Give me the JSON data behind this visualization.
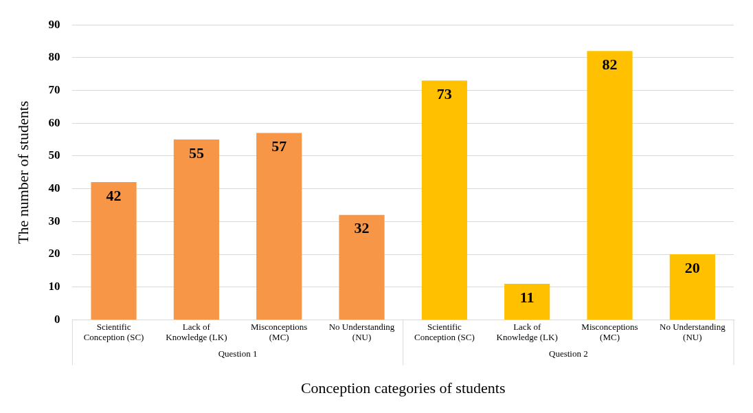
{
  "chart_data": {
    "type": "bar",
    "xlabel": "Conception categories of students",
    "ylabel": "The number of students",
    "categories": [
      "Scientific Conception (SC)",
      "Lack of Knowledge (LK)",
      "Misconceptions (MC)",
      "No Understanding (NU)",
      "Scientific Conception (SC)",
      "Lack of Knowledge (LK)",
      "Misconceptions (MC)",
      "No Understanding (NU)"
    ],
    "values": [
      42,
      55,
      57,
      32,
      73,
      11,
      82,
      20
    ],
    "colors": [
      "#f79646",
      "#f79646",
      "#f79646",
      "#f79646",
      "#ffc000",
      "#ffc000",
      "#ffc000",
      "#ffc000"
    ],
    "ylim": [
      0,
      90
    ],
    "yticks": [
      0,
      10,
      20,
      30,
      40,
      50,
      60,
      70,
      80,
      90
    ],
    "grid": "y",
    "data_labels": true,
    "legend": false,
    "annotations": [
      "Question 1",
      "Question 2"
    ]
  }
}
